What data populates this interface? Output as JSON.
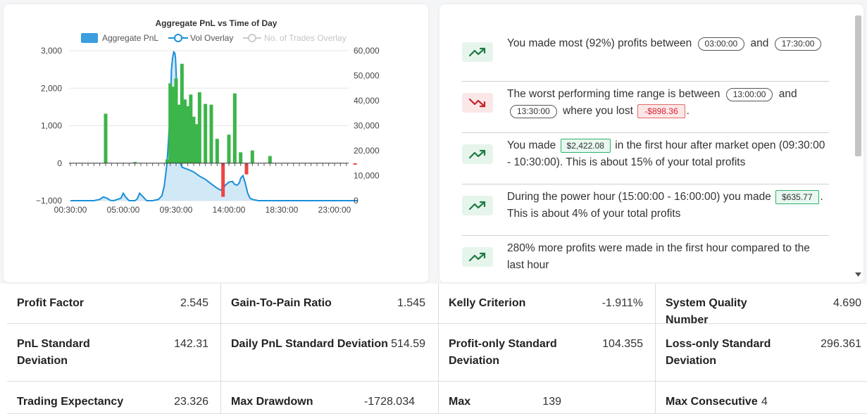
{
  "chart_data": {
    "type": "bar",
    "title": "Aggregate PnL vs Time of Day",
    "legend": [
      "Aggregate PnL",
      "Vol Overlay",
      "No. of Trades Overlay"
    ],
    "legend_placement": "top-center",
    "x_ticks": [
      "00:30:00",
      "05:00:00",
      "09:30:00",
      "14:00:00",
      "18:30:00",
      "23:00:00"
    ],
    "y_left_ticks": [
      "3,000",
      "2,000",
      "1,000",
      "0",
      "−1,000"
    ],
    "y_right_ticks": [
      "60,000",
      "50,000",
      "40,000",
      "30,000",
      "20,000",
      "10,000",
      "0"
    ],
    "ylim_left": [
      -1000,
      3000
    ],
    "ylim_right": [
      0,
      60000
    ],
    "grid": true,
    "pnl_series": {
      "name": "Aggregate PnL",
      "x_hours": [
        3.5,
        6.0,
        8.75,
        9.0,
        9.25,
        9.5,
        9.75,
        10.0,
        10.25,
        10.5,
        10.75,
        11.0,
        11.25,
        11.5,
        12.0,
        12.5,
        13.0,
        13.5,
        14.0,
        14.5,
        15.0,
        15.5,
        16.0,
        17.5,
        24.75
      ],
      "values": [
        1320,
        30,
        100,
        2130,
        2040,
        2260,
        1560,
        2650,
        1700,
        1520,
        1830,
        1240,
        1040,
        1890,
        1580,
        1560,
        650,
        -898,
        760,
        1860,
        290,
        -300,
        340,
        190,
        -40
      ]
    },
    "vol_series": {
      "name": "Vol Overlay",
      "x_hours": [
        0.5,
        2.5,
        3.0,
        3.3,
        3.6,
        3.9,
        4.2,
        4.8,
        5.0,
        5.2,
        5.5,
        6.0,
        6.2,
        6.4,
        6.7,
        7.0,
        7.5,
        8.0,
        8.3,
        8.5,
        8.7,
        8.8,
        8.9,
        9.0,
        9.05,
        9.1,
        9.2,
        9.3,
        9.4,
        9.45,
        9.5,
        9.55,
        9.6,
        9.7,
        9.8,
        9.9,
        10.0,
        10.2,
        10.5,
        11.0,
        11.5,
        12.0,
        12.5,
        13.0,
        13.3,
        13.5,
        13.7,
        14.0,
        14.3,
        14.5,
        14.7,
        14.9,
        15.0,
        15.2,
        15.4,
        15.6,
        15.8,
        16.0,
        16.5,
        17.0,
        25.0
      ],
      "values": [
        0,
        0,
        500,
        1500,
        1000,
        100,
        0,
        1000,
        3000,
        1500,
        0,
        0,
        800,
        3000,
        1500,
        0,
        0,
        500,
        2000,
        6000,
        14000,
        20000,
        28000,
        35000,
        42000,
        52000,
        57000,
        59500,
        59000,
        57000,
        52000,
        44000,
        34000,
        24000,
        17000,
        14500,
        13500,
        13000,
        12500,
        11500,
        9800,
        8500,
        6700,
        5000,
        4200,
        5000,
        6200,
        7400,
        7700,
        6500,
        6200,
        7200,
        9000,
        10000,
        7000,
        3000,
        1000,
        500,
        0,
        0,
        0
      ]
    },
    "trades_series": {
      "name": "No. of Trades Overlay",
      "hidden": true
    }
  },
  "insights": {
    "items": [
      {
        "trend": "trending-up-icon",
        "segments": [
          {
            "t": "text",
            "v": "You made most (92%) profits between "
          },
          {
            "t": "pill",
            "v": "03:00:00"
          },
          {
            "t": "text",
            "v": " and "
          },
          {
            "t": "pill",
            "v": "17:30:00"
          }
        ]
      },
      {
        "trend": "trending-down-icon",
        "segments": [
          {
            "t": "text",
            "v": "The worst performing time range is between "
          },
          {
            "t": "pill",
            "v": "13:00:00"
          },
          {
            "t": "text",
            "v": " and "
          },
          {
            "t": "pill",
            "v": "13:30:00"
          },
          {
            "t": "text",
            "v": " where you lost "
          },
          {
            "t": "red",
            "v": "-$898.36"
          },
          {
            "t": "text",
            "v": "."
          }
        ]
      },
      {
        "trend": "trending-up-icon",
        "segments": [
          {
            "t": "text",
            "v": "You made "
          },
          {
            "t": "green",
            "v": "$2,422.08"
          },
          {
            "t": "text",
            "v": " in the first hour after market open (09:30:00 - 10:30:00). This is about 15% of your total profits"
          }
        ]
      },
      {
        "trend": "trending-up-icon",
        "segments": [
          {
            "t": "text",
            "v": "During the power hour (15:00:00 - 16:00:00) you made "
          },
          {
            "t": "green",
            "v": "$635.77"
          },
          {
            "t": "text",
            "v": ". This is about 4% of your total profits"
          }
        ]
      },
      {
        "trend": "trending-up-icon",
        "segments": [
          {
            "t": "text",
            "v": "280% more profits were made in the first hour compared to the last hour"
          }
        ]
      }
    ]
  },
  "stats": [
    {
      "label": "Profit Factor",
      "value": "2.545"
    },
    {
      "label": "Gain-To-Pain Ratio",
      "value": "1.545"
    },
    {
      "label": "Kelly Criterion",
      "value": "-1.911%"
    },
    {
      "label": "System Quality Number",
      "value": "4.690"
    },
    {
      "label": "PnL Standard Deviation",
      "value": "142.31"
    },
    {
      "label": "Daily PnL Standard Deviation",
      "value": "514.59"
    },
    {
      "label": "Profit-only Standard Deviation",
      "value": "104.355"
    },
    {
      "label": "Loss-only Standard Deviation",
      "value": "296.361"
    },
    {
      "label": "Trading Expectancy",
      "value": "23.326"
    },
    {
      "label": "Max Drawdown",
      "value": "-1728.034"
    },
    {
      "label": "Max",
      "value": "139"
    },
    {
      "label": "Max Consecutive",
      "value": "4"
    }
  ],
  "colors": {
    "pnl_positive": "#3cb54a",
    "pnl_negative": "#ee4444",
    "vol_line": "#1a8fd8",
    "vol_fill": "#c9e4f6",
    "legend_bar": "#3a9ee0",
    "trend_up": "#1e7a45",
    "trend_down": "#c0262c"
  }
}
